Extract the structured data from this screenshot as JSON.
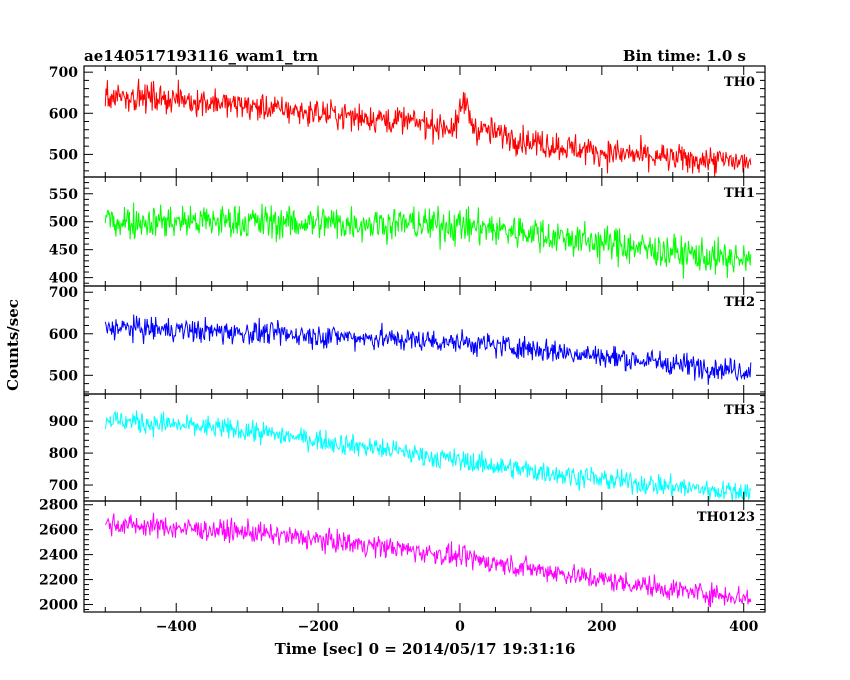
{
  "header": {
    "left_title": "ae140517193116_wam1_trn",
    "right_title": "Bin time: 1.0 s"
  },
  "chart_data": {
    "type": "line",
    "xlabel": "Time [sec] 0 = 2014/05/17 19:31:16",
    "ylabel": "Counts/sec",
    "xlim": [
      -530,
      430
    ],
    "x_range": [
      -500,
      410
    ],
    "x_step": 1,
    "x_ticks": [
      -400,
      -200,
      0,
      200,
      400
    ],
    "panels": [
      {
        "name": "TH0",
        "color": "#ff0000",
        "ylim": [
          445,
          715
        ],
        "y_ticks": [
          500,
          600,
          700
        ],
        "trend": [
          [
            -500,
            645
          ],
          [
            -400,
            635
          ],
          [
            -200,
            600
          ],
          [
            -100,
            585
          ],
          [
            -5,
            565
          ],
          [
            5,
            635
          ],
          [
            20,
            565
          ],
          [
            100,
            530
          ],
          [
            200,
            505
          ],
          [
            300,
            490
          ],
          [
            410,
            480
          ]
        ],
        "noise_amplitude": 30
      },
      {
        "name": "TH1",
        "color": "#00ff00",
        "ylim": [
          385,
          580
        ],
        "y_ticks": [
          400,
          450,
          500,
          550
        ],
        "trend": [
          [
            -500,
            502
          ],
          [
            -300,
            500
          ],
          [
            -100,
            497
          ],
          [
            0,
            493
          ],
          [
            100,
            480
          ],
          [
            200,
            462
          ],
          [
            300,
            445
          ],
          [
            410,
            428
          ]
        ],
        "noise_amplitude": 28
      },
      {
        "name": "TH2",
        "color": "#0000ff",
        "ylim": [
          455,
          715
        ],
        "y_ticks": [
          500,
          600,
          700
        ],
        "trend": [
          [
            -500,
            615
          ],
          [
            -300,
            603
          ],
          [
            -100,
            588
          ],
          [
            0,
            580
          ],
          [
            100,
            565
          ],
          [
            200,
            545
          ],
          [
            300,
            528
          ],
          [
            410,
            510
          ]
        ],
        "noise_amplitude": 25
      },
      {
        "name": "TH3",
        "color": "#00ffff",
        "ylim": [
          650,
          985
        ],
        "y_ticks": [
          700,
          800,
          900
        ],
        "trend": [
          [
            -500,
            905
          ],
          [
            -300,
            870
          ],
          [
            -100,
            810
          ],
          [
            0,
            775
          ],
          [
            100,
            745
          ],
          [
            200,
            718
          ],
          [
            300,
            695
          ],
          [
            410,
            675
          ]
        ],
        "noise_amplitude": 30
      },
      {
        "name": "TH0123",
        "color": "#ff00ff",
        "ylim": [
          1940,
          2830
        ],
        "y_ticks": [
          2000,
          2200,
          2400,
          2600,
          2800
        ],
        "trend": [
          [
            -500,
            2650
          ],
          [
            -300,
            2580
          ],
          [
            -100,
            2460
          ],
          [
            0,
            2380
          ],
          [
            100,
            2290
          ],
          [
            200,
            2200
          ],
          [
            300,
            2120
          ],
          [
            410,
            2050
          ]
        ],
        "noise_amplitude": 75
      }
    ]
  }
}
